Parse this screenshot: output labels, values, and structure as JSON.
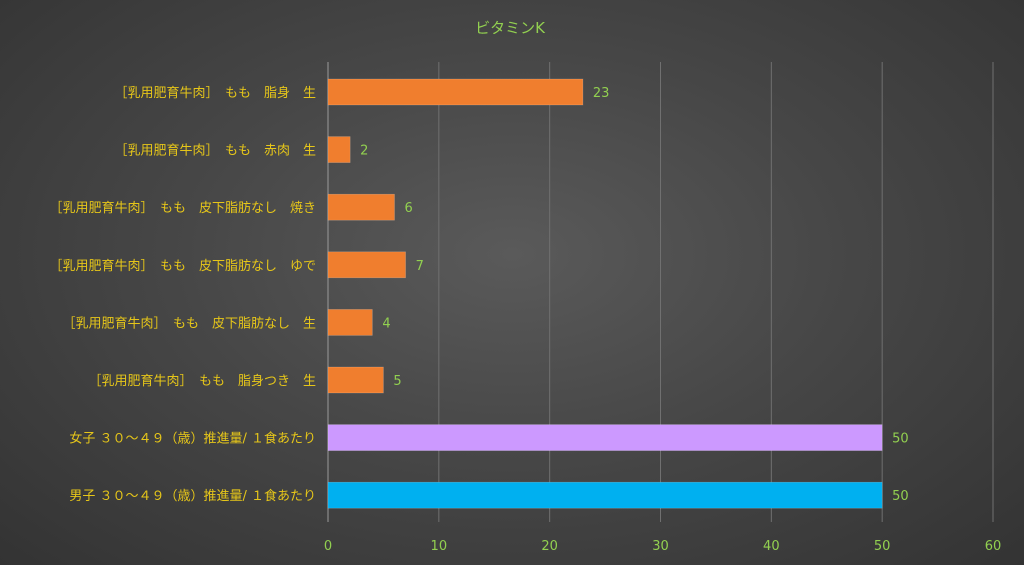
{
  "chart_data": {
    "type": "bar",
    "orientation": "horizontal",
    "title": "ビタミンK",
    "xlabel": "",
    "ylabel": "",
    "xlim": [
      0,
      60
    ],
    "x_ticks": [
      0,
      10,
      20,
      30,
      40,
      50,
      60
    ],
    "grid": true,
    "legend": "none",
    "categories": [
      "［乳用肥育牛肉］　もも　脂身　生",
      "［乳用肥育牛肉］　もも　赤肉　生",
      "［乳用肥育牛肉］　もも　皮下脂肪なし　焼き",
      "［乳用肥育牛肉］　もも　皮下脂肪なし　ゆで",
      "［乳用肥育牛肉］　もも　皮下脂肪なし　生",
      "［乳用肥育牛肉］　もも　脂身つき　生",
      "女子 ３０～４９（歳）推進量/ １食あたり",
      "男子 ３０～４９（歳）推進量/ １食あたり"
    ],
    "values": [
      23,
      2,
      6,
      7,
      4,
      5,
      50,
      50
    ],
    "data_labels": [
      "23",
      "2",
      "6",
      "7",
      "4",
      "5",
      "50",
      "50"
    ],
    "colors": [
      "#f07e2e",
      "#f07e2e",
      "#f07e2e",
      "#f07e2e",
      "#f07e2e",
      "#f07e2e",
      "#cc99ff",
      "#00b0f0"
    ]
  }
}
